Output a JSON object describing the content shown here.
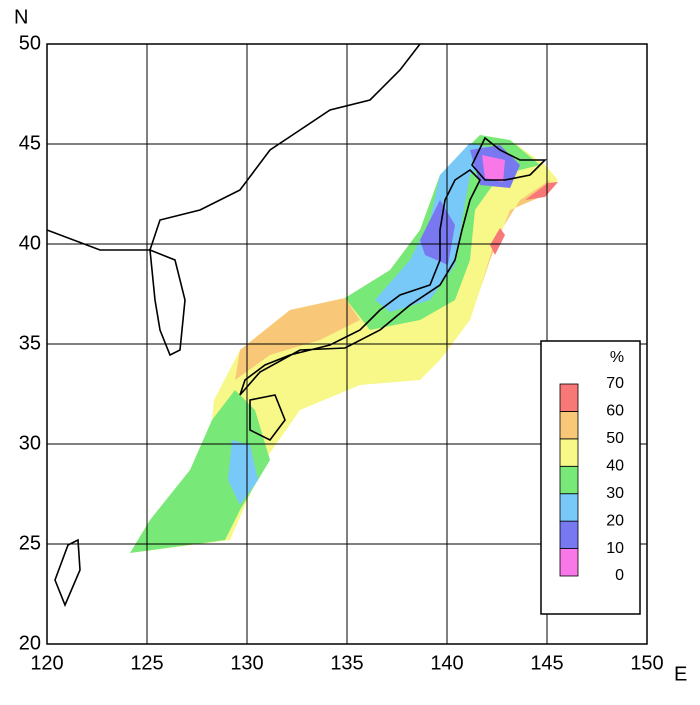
{
  "map": {
    "x_axis": {
      "label": "E",
      "lim": [
        120,
        150
      ],
      "ticks": [
        120,
        125,
        130,
        135,
        140,
        145,
        150
      ]
    },
    "y_axis": {
      "label": "N",
      "lim": [
        20,
        50
      ],
      "ticks": [
        20,
        25,
        30,
        35,
        40,
        45,
        50
      ]
    },
    "legend": {
      "title": "%",
      "levels": [
        0,
        10,
        20,
        30,
        40,
        50,
        60,
        70
      ],
      "colors": [
        "#f878e8",
        "#7878f0",
        "#78c8f8",
        "#78e878",
        "#f8f888",
        "#f8c878",
        "#f87878"
      ]
    }
  }
}
